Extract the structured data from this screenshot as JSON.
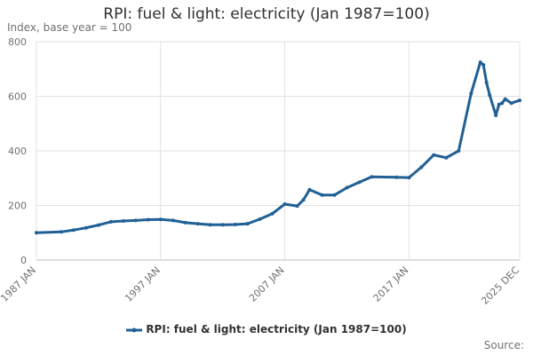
{
  "chart_data": {
    "type": "line",
    "title": "RPI: fuel & light: electricity (Jan 1987=100)",
    "subtitle": "Index, base year = 100",
    "source_label": "Source:",
    "series_color": "#206095",
    "grid": true,
    "legend_placement": "bottom",
    "ylim": [
      0,
      800
    ],
    "y_ticks": [
      0,
      200,
      400,
      600,
      800
    ],
    "x_ticks": [
      "1987 JAN",
      "1997 JAN",
      "2007 JAN",
      "2017 JAN",
      "2025 DEC"
    ],
    "series": [
      {
        "name": "RPI: fuel & light: electricity (Jan 1987=100)",
        "points": [
          [
            "1987 JAN",
            100
          ],
          [
            "1989 JAN",
            103
          ],
          [
            "1990 JAN",
            110
          ],
          [
            "1991 JAN",
            118
          ],
          [
            "1992 JAN",
            128
          ],
          [
            "1993 JAN",
            140
          ],
          [
            "1994 JAN",
            143
          ],
          [
            "1995 JAN",
            145
          ],
          [
            "1996 JAN",
            148
          ],
          [
            "1997 JAN",
            149
          ],
          [
            "1998 JAN",
            145
          ],
          [
            "1999 JAN",
            137
          ],
          [
            "2000 JAN",
            133
          ],
          [
            "2001 JAN",
            129
          ],
          [
            "2002 JAN",
            129
          ],
          [
            "2003 JAN",
            130
          ],
          [
            "2004 JAN",
            133
          ],
          [
            "2005 JAN",
            150
          ],
          [
            "2006 JAN",
            170
          ],
          [
            "2007 JAN",
            205
          ],
          [
            "2008 JAN",
            198
          ],
          [
            "2008 JUL",
            220
          ],
          [
            "2009 JAN",
            258
          ],
          [
            "2010 JAN",
            238
          ],
          [
            "2011 JAN",
            238
          ],
          [
            "2012 JAN",
            265
          ],
          [
            "2013 JAN",
            285
          ],
          [
            "2014 JAN",
            305
          ],
          [
            "2016 JAN",
            303
          ],
          [
            "2017 JAN",
            302
          ],
          [
            "2018 JAN",
            340
          ],
          [
            "2019 JAN",
            385
          ],
          [
            "2020 JAN",
            375
          ],
          [
            "2021 JAN",
            400
          ],
          [
            "2022 JAN",
            610
          ],
          [
            "2022 OCT",
            725
          ],
          [
            "2023 JAN",
            715
          ],
          [
            "2023 APR",
            650
          ],
          [
            "2023 JUL",
            605
          ],
          [
            "2024 JAN",
            530
          ],
          [
            "2024 APR",
            570
          ],
          [
            "2024 JUL",
            575
          ],
          [
            "2024 OCT",
            590
          ],
          [
            "2025 APR",
            575
          ],
          [
            "2025 DEC",
            585
          ]
        ]
      }
    ]
  }
}
